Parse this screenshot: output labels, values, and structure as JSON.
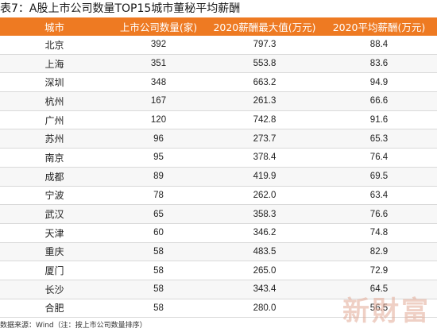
{
  "title": "表7：A股上市公司数量TOP15城市董秘平均薪酬",
  "table": {
    "headers": [
      "城市",
      "上市公司数量(家)",
      "2020薪酬最大值(万元)",
      "2020平均薪酬(万元)"
    ],
    "rows": [
      [
        "北京",
        "392",
        "797.3",
        "88.4"
      ],
      [
        "上海",
        "351",
        "553.8",
        "83.6"
      ],
      [
        "深圳",
        "348",
        "663.2",
        "94.9"
      ],
      [
        "杭州",
        "167",
        "261.3",
        "66.6"
      ],
      [
        "广州",
        "120",
        "742.8",
        "91.6"
      ],
      [
        "苏州",
        "96",
        "273.7",
        "65.3"
      ],
      [
        "南京",
        "95",
        "378.4",
        "76.4"
      ],
      [
        "成都",
        "89",
        "419.9",
        "69.5"
      ],
      [
        "宁波",
        "78",
        "262.0",
        "63.4"
      ],
      [
        "武汉",
        "65",
        "358.3",
        "76.6"
      ],
      [
        "天津",
        "60",
        "346.2",
        "74.8"
      ],
      [
        "重庆",
        "58",
        "483.5",
        "82.9"
      ],
      [
        "厦门",
        "58",
        "265.0",
        "72.9"
      ],
      [
        "长沙",
        "58",
        "343.4",
        "64.5"
      ],
      [
        "合肥",
        "58",
        "280.0",
        "56.5"
      ]
    ]
  },
  "source": "数据来源：Wind（注：按上市公司数量排序）",
  "watermark": "新財富",
  "colors": {
    "header_bg": "#ee7a22",
    "header_text": "#ffffff",
    "watermark": "#e2aa96"
  }
}
